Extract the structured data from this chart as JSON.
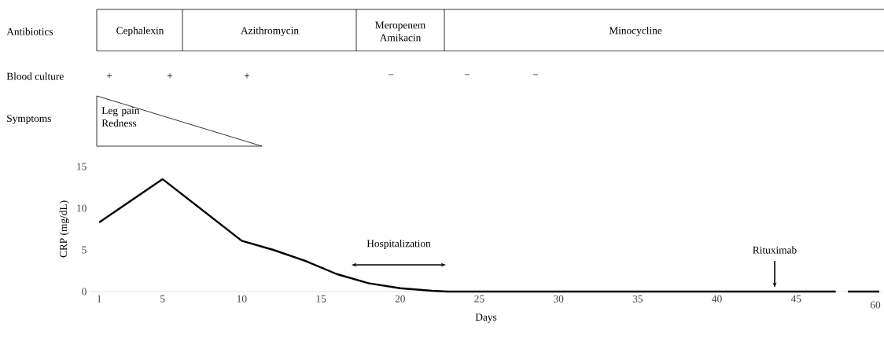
{
  "chart_data": {
    "type": "line",
    "xlabel": "Days",
    "ylabel": "CRP (mg/dL)",
    "x": [
      1,
      5,
      10,
      12,
      14,
      16,
      18,
      20,
      22,
      23,
      47.5
    ],
    "values": [
      8.3,
      13.5,
      6.1,
      5.0,
      3.7,
      2.1,
      1.0,
      0.4,
      0.1,
      0,
      0
    ],
    "color": "#000000",
    "xlim": [
      0.45,
      50.4
    ],
    "ylim": [
      0,
      15
    ],
    "xticks": [
      1,
      5,
      10,
      15,
      20,
      25,
      30,
      35,
      40,
      45
    ],
    "yticks": [
      0,
      5,
      10,
      15
    ],
    "annotations": [
      "Antibiotics",
      "Blood culture",
      "Symptoms",
      "Cephalexin",
      "Azithromycin",
      "Meropenem Amikacin",
      "Minocycline",
      "+",
      "+",
      "+",
      "−",
      "−",
      "−",
      "Leg pain Redness",
      "Hospitalization",
      "Rituximab",
      "60"
    ]
  }
}
